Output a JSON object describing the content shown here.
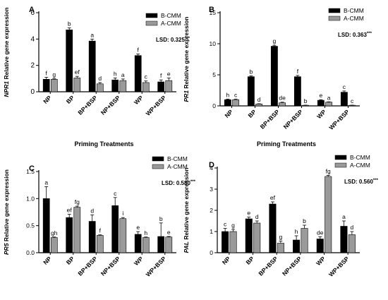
{
  "chart_data": [
    {
      "type": "bar",
      "panel_label": "A",
      "ylabel_gene": "NPR1",
      "ylabel_rest": " Relative gene expression",
      "xlabel": "Priming Treatments",
      "categories": [
        "NP",
        "BP",
        "BP+BSP",
        "NP+BSP",
        "WP",
        "WP+BSP"
      ],
      "ylim": [
        0,
        6
      ],
      "yticks": [
        0,
        2,
        4,
        6
      ],
      "lsd_label": "LSD: 0.325",
      "lsd_sig": "***",
      "series": [
        {
          "name": "B-CMM",
          "color": "#000000",
          "values": [
            0.95,
            4.7,
            3.85,
            0.9,
            2.75,
            0.75
          ],
          "errors": [
            0.15,
            0.15,
            0.15,
            0.15,
            0.12,
            0.15
          ],
          "labels": [
            "f",
            "b",
            "a",
            "h",
            "f",
            "f"
          ]
        },
        {
          "name": "A-CMM",
          "color": "#9a9a9a",
          "values": [
            0.95,
            1.05,
            0.6,
            0.85,
            0.7,
            0.85
          ],
          "errors": [
            0.05,
            0.12,
            0.1,
            0.12,
            0.12,
            0.2
          ],
          "labels": [
            "g",
            "ef",
            "d",
            "a",
            "c",
            "e"
          ]
        }
      ]
    },
    {
      "type": "bar",
      "panel_label": "B",
      "ylabel_gene": "PR1",
      "ylabel_rest": " Relative gene expression",
      "xlabel": "Priming Treatments",
      "categories": [
        "NP",
        "BP",
        "BP+BSP",
        "NP+BSP",
        "WP",
        "WP+BSP"
      ],
      "ylim": [
        0,
        15
      ],
      "yticks": [
        0,
        5,
        10,
        15
      ],
      "lsd_label": "LSD: 0.363",
      "lsd_sig": "***",
      "series": [
        {
          "name": "B-CMM",
          "color": "#000000",
          "values": [
            1.0,
            4.7,
            9.6,
            4.7,
            0.9,
            2.2
          ],
          "errors": [
            0.1,
            0.15,
            0.15,
            0.2,
            0.1,
            0.2
          ],
          "labels": [
            "h",
            "b",
            "g",
            "f",
            "e",
            "c"
          ]
        },
        {
          "name": "A-CMM",
          "color": "#9a9a9a",
          "values": [
            1.0,
            0.3,
            0.5,
            0.1,
            0.6,
            0.1
          ],
          "errors": [
            0.1,
            0.05,
            0.1,
            0.02,
            0.05,
            0.02
          ],
          "labels": [
            "c",
            "d",
            "de",
            "b",
            "a",
            "c"
          ]
        }
      ]
    },
    {
      "type": "bar",
      "panel_label": "C",
      "ylabel_gene": "PR5",
      "ylabel_rest": " Relative gene expression",
      "xlabel": "Priming Treatments",
      "categories": [
        "NP",
        "BP",
        "BP+BSP",
        "NP+BSP",
        "WP",
        "WP+BSP"
      ],
      "ylim": [
        0,
        1.5
      ],
      "yticks": [
        0.0,
        0.5,
        1.0,
        1.5
      ],
      "lsd_label": "LSD: 0.580",
      "lsd_sig": "***",
      "series": [
        {
          "name": "B-CMM",
          "color": "#000000",
          "values": [
            1.0,
            0.65,
            0.58,
            0.87,
            0.34,
            0.3
          ],
          "errors": [
            0.22,
            0.06,
            0.12,
            0.15,
            0.05,
            0.25
          ],
          "labels": [
            "a",
            "ef",
            "d",
            "c",
            "e",
            "b"
          ]
        },
        {
          "name": "A-CMM",
          "color": "#9a9a9a",
          "values": [
            0.28,
            0.84,
            0.32,
            0.63,
            0.28,
            0.29
          ],
          "errors": [
            0.01,
            0.02,
            0.01,
            0.02,
            0.01,
            0.01
          ],
          "labels": [
            "gh",
            "fg",
            "f",
            "i",
            "h",
            "e"
          ]
        }
      ]
    },
    {
      "type": "bar",
      "panel_label": "D",
      "ylabel_gene": "PAL",
      "ylabel_rest": " Relative gene expression",
      "xlabel": "Priming Treatments",
      "categories": [
        "NP",
        "BP",
        "BP+BSP",
        "NP+BSP",
        "WP",
        "WP+BSP"
      ],
      "ylim": [
        0,
        4
      ],
      "yticks": [
        0,
        1,
        2,
        3,
        4
      ],
      "lsd_label": "LSD: 0.560",
      "lsd_sig": "***",
      "series": [
        {
          "name": "B-CMM",
          "color": "#000000",
          "values": [
            1.0,
            1.6,
            2.3,
            0.6,
            0.65,
            1.25
          ],
          "errors": [
            0.15,
            0.08,
            0.1,
            0.2,
            0.1,
            0.25
          ],
          "labels": [
            "c",
            "e",
            "ef",
            "h",
            "de",
            "a"
          ]
        },
        {
          "name": "A-CMM",
          "color": "#9a9a9a",
          "values": [
            1.0,
            1.4,
            0.45,
            1.15,
            3.6,
            0.85
          ],
          "errors": [
            0.1,
            0.1,
            0.1,
            0.15,
            0.05,
            0.15
          ],
          "labels": [
            "g",
            "d",
            "g",
            "b",
            "fg",
            "d"
          ]
        }
      ]
    }
  ]
}
